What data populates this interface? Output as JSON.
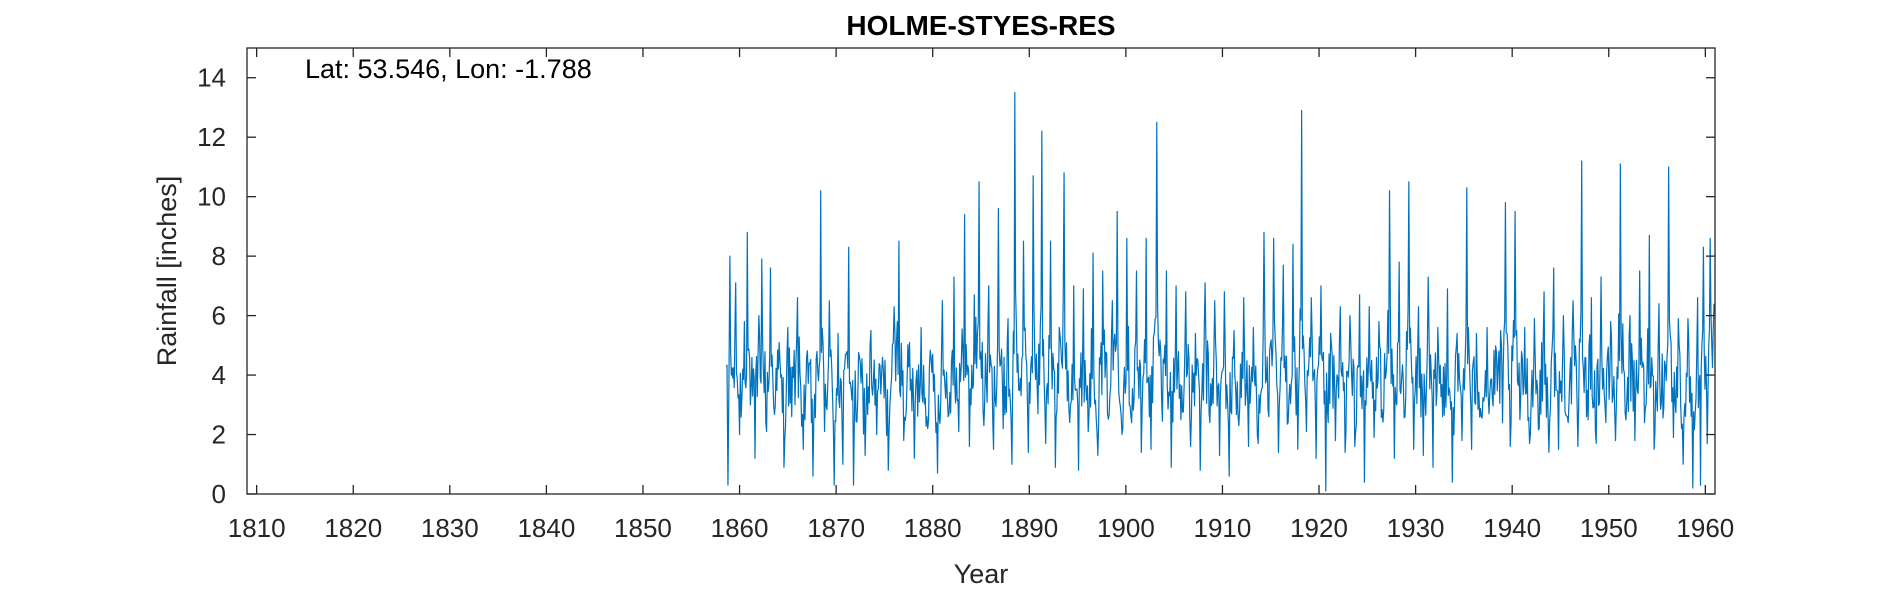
{
  "chart_data": {
    "type": "line",
    "title": "HOLME-STYES-RES",
    "annotation": "Lat: 53.546, Lon: -1.788",
    "xlabel": "Year",
    "ylabel": "Rainfall [inches]",
    "xlim": [
      1809,
      1961
    ],
    "ylim": [
      0,
      15
    ],
    "xticks": [
      1810,
      1820,
      1830,
      1840,
      1850,
      1860,
      1870,
      1880,
      1890,
      1900,
      1910,
      1920,
      1930,
      1940,
      1950,
      1960
    ],
    "yticks": [
      0,
      2,
      4,
      6,
      8,
      10,
      12,
      14
    ],
    "grid": false,
    "series": [
      {
        "color": "#0072BD",
        "sampling": "monthly",
        "start": 1858.5,
        "end": 1960.9,
        "points": [
          [
            1858.6,
            4.3
          ],
          [
            1858.8,
            0.3
          ],
          [
            1859.0,
            8.0
          ],
          [
            1859.3,
            3.9
          ],
          [
            1859.6,
            7.1
          ],
          [
            1860.0,
            2.0
          ],
          [
            1860.5,
            5.8
          ],
          [
            1860.8,
            8.8
          ],
          [
            1861.2,
            3.5
          ],
          [
            1861.6,
            1.2
          ],
          [
            1862.0,
            6.0
          ],
          [
            1862.3,
            7.9
          ],
          [
            1862.8,
            2.1
          ],
          [
            1863.2,
            7.6
          ],
          [
            1863.7,
            3.0
          ],
          [
            1864.1,
            5.1
          ],
          [
            1864.6,
            0.9
          ],
          [
            1865.0,
            5.6
          ],
          [
            1865.4,
            2.6
          ],
          [
            1866.0,
            6.6
          ],
          [
            1866.6,
            1.5
          ],
          [
            1867.2,
            4.4
          ],
          [
            1867.6,
            0.6
          ],
          [
            1868.1,
            4.1
          ],
          [
            1868.4,
            10.2
          ],
          [
            1868.8,
            2.1
          ],
          [
            1869.3,
            6.5
          ],
          [
            1869.8,
            0.3
          ],
          [
            1870.2,
            5.4
          ],
          [
            1870.7,
            1.0
          ],
          [
            1871.3,
            8.3
          ],
          [
            1871.8,
            0.3
          ],
          [
            1872.5,
            4.4
          ],
          [
            1873.0,
            1.3
          ],
          [
            1873.6,
            5.5
          ],
          [
            1874.2,
            2.0
          ],
          [
            1874.8,
            4.6
          ],
          [
            1875.4,
            0.8
          ],
          [
            1876.0,
            6.3
          ],
          [
            1876.5,
            8.5
          ],
          [
            1877.0,
            1.8
          ],
          [
            1877.6,
            5.1
          ],
          [
            1878.1,
            1.2
          ],
          [
            1878.8,
            5.6
          ],
          [
            1879.4,
            2.6
          ],
          [
            1880.0,
            4.7
          ],
          [
            1880.5,
            0.7
          ],
          [
            1881.0,
            6.5
          ],
          [
            1881.6,
            2.6
          ],
          [
            1882.2,
            7.3
          ],
          [
            1882.7,
            2.1
          ],
          [
            1883.3,
            9.4
          ],
          [
            1883.8,
            1.6
          ],
          [
            1884.3,
            6.7
          ],
          [
            1884.8,
            10.5
          ],
          [
            1885.3,
            2.3
          ],
          [
            1885.8,
            7.0
          ],
          [
            1886.3,
            1.5
          ],
          [
            1886.8,
            9.6
          ],
          [
            1887.3,
            2.2
          ],
          [
            1887.8,
            5.9
          ],
          [
            1888.2,
            1.0
          ],
          [
            1888.5,
            13.5
          ],
          [
            1888.9,
            3.5
          ],
          [
            1889.4,
            8.5
          ],
          [
            1889.9,
            1.4
          ],
          [
            1890.4,
            10.7
          ],
          [
            1890.9,
            2.7
          ],
          [
            1891.3,
            12.2
          ],
          [
            1891.7,
            1.7
          ],
          [
            1892.2,
            8.5
          ],
          [
            1892.7,
            0.9
          ],
          [
            1893.1,
            5.6
          ],
          [
            1893.6,
            10.8
          ],
          [
            1894.1,
            2.9
          ],
          [
            1894.6,
            7.0
          ],
          [
            1895.1,
            0.8
          ],
          [
            1895.6,
            6.9
          ],
          [
            1896.1,
            2.1
          ],
          [
            1896.6,
            8.1
          ],
          [
            1897.1,
            1.3
          ],
          [
            1897.6,
            7.5
          ],
          [
            1898.1,
            2.7
          ],
          [
            1898.6,
            6.5
          ],
          [
            1899.1,
            9.5
          ],
          [
            1899.6,
            2.0
          ],
          [
            1900.1,
            8.6
          ],
          [
            1900.6,
            2.4
          ],
          [
            1901.1,
            7.5
          ],
          [
            1901.6,
            1.4
          ],
          [
            1902.1,
            8.6
          ],
          [
            1902.6,
            1.5
          ],
          [
            1903.2,
            12.5
          ],
          [
            1903.7,
            3.2
          ],
          [
            1904.2,
            7.5
          ],
          [
            1904.7,
            0.9
          ],
          [
            1905.2,
            7.0
          ],
          [
            1905.7,
            2.5
          ],
          [
            1906.2,
            6.8
          ],
          [
            1906.7,
            1.6
          ],
          [
            1907.2,
            5.4
          ],
          [
            1907.7,
            0.8
          ],
          [
            1908.2,
            7.1
          ],
          [
            1908.7,
            2.4
          ],
          [
            1909.2,
            6.5
          ],
          [
            1909.7,
            1.3
          ],
          [
            1910.2,
            6.8
          ],
          [
            1910.7,
            0.6
          ],
          [
            1911.2,
            5.5
          ],
          [
            1911.7,
            2.3
          ],
          [
            1912.2,
            6.6
          ],
          [
            1912.7,
            1.6
          ],
          [
            1913.2,
            5.6
          ],
          [
            1913.7,
            1.7
          ],
          [
            1914.3,
            8.8
          ],
          [
            1914.8,
            2.6
          ],
          [
            1915.3,
            8.6
          ],
          [
            1915.8,
            1.4
          ],
          [
            1916.3,
            7.7
          ],
          [
            1916.8,
            2.4
          ],
          [
            1917.3,
            8.4
          ],
          [
            1917.8,
            1.5
          ],
          [
            1918.2,
            12.9
          ],
          [
            1918.7,
            2.1
          ],
          [
            1919.2,
            6.6
          ],
          [
            1919.7,
            1.2
          ],
          [
            1920.2,
            7.0
          ],
          [
            1920.7,
            0.1
          ],
          [
            1921.2,
            5.4
          ],
          [
            1921.7,
            1.8
          ],
          [
            1922.2,
            6.3
          ],
          [
            1922.7,
            1.4
          ],
          [
            1923.2,
            6.0
          ],
          [
            1923.7,
            1.6
          ],
          [
            1924.2,
            6.7
          ],
          [
            1924.7,
            0.4
          ],
          [
            1925.2,
            6.3
          ],
          [
            1925.7,
            1.9
          ],
          [
            1926.2,
            5.8
          ],
          [
            1926.7,
            2.8
          ],
          [
            1927.3,
            10.2
          ],
          [
            1927.8,
            1.2
          ],
          [
            1928.3,
            7.8
          ],
          [
            1928.9,
            2.6
          ],
          [
            1929.3,
            10.5
          ],
          [
            1929.8,
            1.5
          ],
          [
            1930.3,
            6.3
          ],
          [
            1930.8,
            1.3
          ],
          [
            1931.3,
            7.3
          ],
          [
            1931.8,
            0.9
          ],
          [
            1932.3,
            5.6
          ],
          [
            1932.8,
            2.6
          ],
          [
            1933.3,
            6.9
          ],
          [
            1933.8,
            0.4
          ],
          [
            1934.3,
            5.4
          ],
          [
            1934.8,
            1.8
          ],
          [
            1935.3,
            10.3
          ],
          [
            1935.8,
            1.5
          ],
          [
            1936.3,
            5.4
          ],
          [
            1936.8,
            2.6
          ],
          [
            1937.4,
            5.6
          ],
          [
            1937.6,
            2.7
          ],
          [
            1938.8,
            5.5
          ],
          [
            1939.0,
            2.4
          ],
          [
            1939.3,
            9.8
          ],
          [
            1939.8,
            1.6
          ],
          [
            1940.3,
            9.5
          ],
          [
            1940.8,
            2.5
          ],
          [
            1941.3,
            5.6
          ],
          [
            1941.8,
            1.7
          ],
          [
            1942.3,
            5.9
          ],
          [
            1942.8,
            2.2
          ],
          [
            1943.3,
            6.8
          ],
          [
            1943.8,
            1.4
          ],
          [
            1944.3,
            7.6
          ],
          [
            1944.8,
            1.5
          ],
          [
            1945.3,
            6.0
          ],
          [
            1945.8,
            2.4
          ],
          [
            1946.3,
            6.5
          ],
          [
            1946.8,
            1.6
          ],
          [
            1947.2,
            11.2
          ],
          [
            1947.7,
            2.6
          ],
          [
            1948.2,
            6.6
          ],
          [
            1948.7,
            1.7
          ],
          [
            1949.2,
            7.3
          ],
          [
            1949.7,
            2.4
          ],
          [
            1950.2,
            5.8
          ],
          [
            1950.7,
            1.8
          ],
          [
            1951.2,
            11.1
          ],
          [
            1951.7,
            2.7
          ],
          [
            1952.2,
            6.0
          ],
          [
            1952.7,
            1.8
          ],
          [
            1953.2,
            7.5
          ],
          [
            1953.7,
            2.4
          ],
          [
            1954.2,
            8.7
          ],
          [
            1954.7,
            1.5
          ],
          [
            1955.2,
            6.4
          ],
          [
            1955.7,
            2.9
          ],
          [
            1956.2,
            11.0
          ],
          [
            1956.7,
            1.9
          ],
          [
            1957.2,
            5.9
          ],
          [
            1957.7,
            1.0
          ],
          [
            1958.2,
            5.9
          ],
          [
            1958.7,
            0.2
          ],
          [
            1959.2,
            6.6
          ],
          [
            1959.5,
            0.3
          ],
          [
            1959.8,
            8.3
          ],
          [
            1960.2,
            1.7
          ],
          [
            1960.5,
            8.6
          ],
          [
            1960.9,
            6.4
          ]
        ]
      }
    ]
  }
}
